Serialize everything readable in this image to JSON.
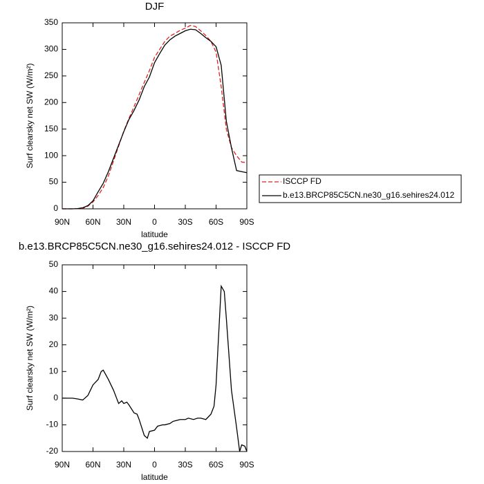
{
  "chart_data": [
    {
      "type": "line",
      "title": "DJF",
      "xlabel": "latitude",
      "ylabel": "Surf clearsky net SW (W/m²)",
      "x": [
        90,
        85,
        80,
        75,
        70,
        65,
        60,
        55,
        50,
        45,
        40,
        35,
        30,
        25,
        20,
        15,
        10,
        5,
        0,
        -5,
        -10,
        -15,
        -20,
        -25,
        -30,
        -35,
        -40,
        -45,
        -50,
        -55,
        -60,
        -65,
        -70,
        -75,
        -80,
        -85,
        -90
      ],
      "series": [
        {
          "name": "ISCCP FD",
          "color": "#e0201b",
          "dash": true,
          "values": [
            0,
            0,
            0,
            0.3,
            1,
            5,
            13,
            25,
            40,
            62,
            90,
            118,
            146,
            170,
            192,
            215,
            238,
            260,
            285,
            300,
            315,
            325,
            330,
            336,
            340,
            345,
            343,
            335,
            326,
            315,
            295,
            230,
            150,
            115,
            100,
            88,
            87
          ]
        },
        {
          "name": "b.e13.BRCP85C5CN.ne30_g16.sehires24.012",
          "color": "#000000",
          "dash": false,
          "values": [
            0,
            0,
            0,
            0.5,
            2,
            6,
            15,
            32,
            48,
            70,
            95,
            120,
            145,
            168,
            185,
            205,
            230,
            248,
            275,
            292,
            308,
            318,
            325,
            330,
            335,
            338,
            337,
            330,
            322,
            315,
            305,
            270,
            165,
            115,
            72,
            70,
            68
          ]
        }
      ],
      "xlim": [
        90,
        -90
      ],
      "xticks": [
        {
          "value": 90,
          "label": "90N"
        },
        {
          "value": 60,
          "label": "60N"
        },
        {
          "value": 30,
          "label": "30N"
        },
        0,
        {
          "value": -30,
          "label": "30S"
        },
        {
          "value": -60,
          "label": "60S"
        },
        {
          "value": -90,
          "label": "90S"
        }
      ],
      "ylim": [
        0,
        350
      ],
      "yticks": [
        0,
        50,
        100,
        150,
        200,
        250,
        300,
        350
      ],
      "legend": "right"
    },
    {
      "type": "line",
      "title": "b.e13.BRCP85C5CN.ne30_g16.sehires24.012 - ISCCP FD",
      "xlabel": "latitude",
      "ylabel": "Surf clearsky net SW (W/m²)",
      "x": [
        90,
        85,
        80,
        75,
        70,
        65,
        60,
        55,
        52,
        50,
        45,
        40,
        35,
        32,
        30,
        27,
        25,
        20,
        17,
        15,
        10,
        7,
        5,
        0,
        -3,
        -8,
        -10,
        -15,
        -18,
        -20,
        -25,
        -30,
        -33,
        -38,
        -42,
        -45,
        -50,
        -55,
        -58,
        -60,
        -62,
        -65,
        -68,
        -70,
        -75,
        -80,
        -83,
        -85,
        -88,
        -90
      ],
      "values": [
        0,
        0,
        0,
        -0.3,
        -0.7,
        1,
        5,
        7,
        10,
        10.5,
        7,
        3,
        -2,
        -1,
        -2,
        -1.5,
        -2.5,
        -5.5,
        -6,
        -8,
        -14,
        -15,
        -12.5,
        -12,
        -10.5,
        -10,
        -10,
        -9.5,
        -8.7,
        -8.5,
        -8,
        -8,
        -7.5,
        -8,
        -7.5,
        -7.5,
        -8,
        -6,
        -3,
        5,
        20,
        42,
        40,
        30,
        3,
        -11,
        -20,
        -17.5,
        -18,
        -20
      ],
      "color": "#000000",
      "xlim": [
        90,
        -90
      ],
      "xticks": [
        {
          "value": 90,
          "label": "90N"
        },
        {
          "value": 60,
          "label": "60N"
        },
        {
          "value": 30,
          "label": "30N"
        },
        0,
        {
          "value": -30,
          "label": "30S"
        },
        {
          "value": -60,
          "label": "60S"
        },
        {
          "value": -90,
          "label": "90S"
        }
      ],
      "ylim": [
        -20,
        50
      ],
      "yticks": [
        -20,
        -10,
        0,
        10,
        20,
        30,
        40,
        50
      ]
    }
  ]
}
